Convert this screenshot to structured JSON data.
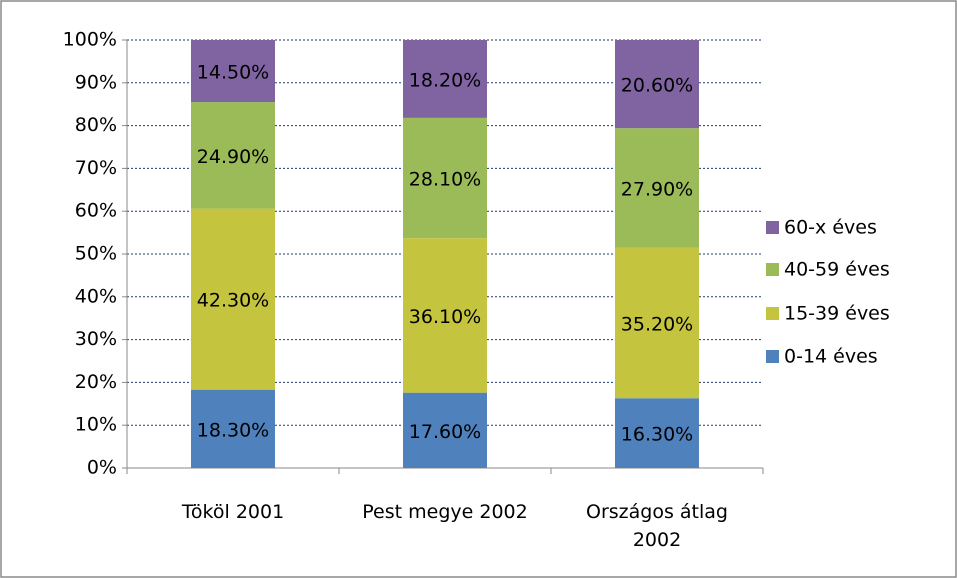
{
  "chart_data": {
    "type": "stacked_bar",
    "categories": [
      "Tököl 2001",
      "Pest megye 2002",
      "Országos átlag 2002"
    ],
    "series": [
      {
        "name": "0-14 éves",
        "color": "#4f81bd",
        "values": [
          18.3,
          17.6,
          16.3
        ],
        "value_labels": [
          "18.30%",
          "17.60%",
          "16.30%"
        ]
      },
      {
        "name": "15-39 éves",
        "color": "#c4c43f",
        "values": [
          42.3,
          36.1,
          35.2
        ],
        "value_labels": [
          "42.30%",
          "36.10%",
          "35.20%"
        ]
      },
      {
        "name": "40-59 éves",
        "color": "#9bbb59",
        "values": [
          24.9,
          28.1,
          27.9
        ],
        "value_labels": [
          "24.90%",
          "28.10%",
          "27.90%"
        ]
      },
      {
        "name": "60-x éves",
        "color": "#8064a2",
        "values": [
          14.5,
          18.2,
          20.6
        ],
        "value_labels": [
          "14.50%",
          "18.20%",
          "20.60%"
        ]
      }
    ],
    "ylim": [
      0,
      100
    ],
    "yticks": [
      {
        "value": 0,
        "label": "0%"
      },
      {
        "value": 10,
        "label": "10%"
      },
      {
        "value": 20,
        "label": "20%"
      },
      {
        "value": 30,
        "label": "30%"
      },
      {
        "value": 40,
        "label": "40%"
      },
      {
        "value": 50,
        "label": "50%"
      },
      {
        "value": 60,
        "label": "60%"
      },
      {
        "value": 70,
        "label": "70%"
      },
      {
        "value": 80,
        "label": "80%"
      },
      {
        "value": 90,
        "label": "90%"
      },
      {
        "value": 100,
        "label": "100%"
      }
    ],
    "grid": true,
    "legend": "right"
  }
}
